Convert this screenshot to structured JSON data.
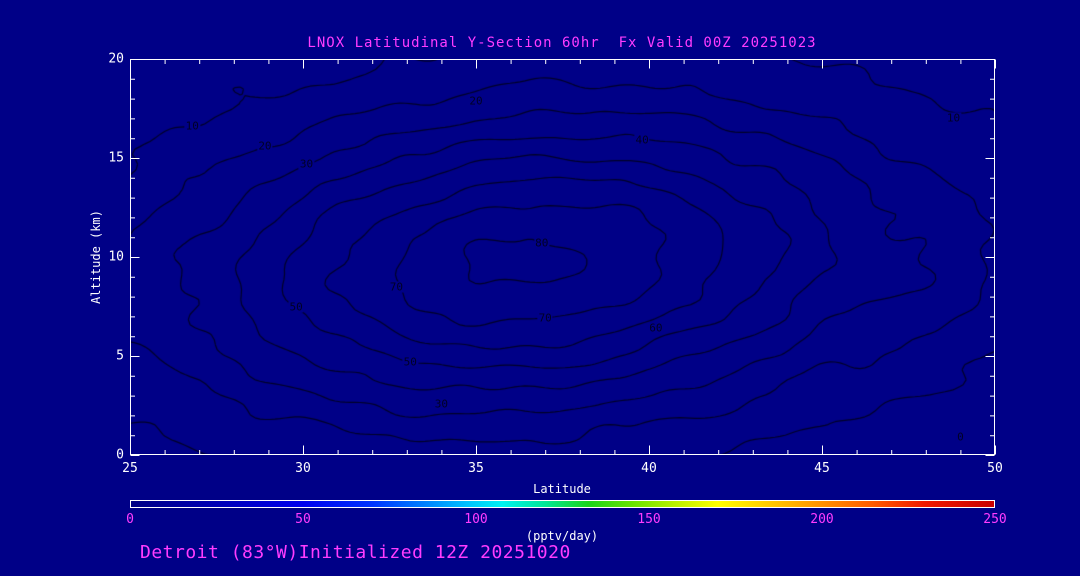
{
  "chart_data": {
    "type": "contour",
    "title": "LNOX Latitudinal Y-Section 60hr  Fx Valid 00Z 20251023",
    "xlabel": "Latitude",
    "ylabel": "Altitude (km)",
    "xlim": [
      25,
      50
    ],
    "ylim": [
      0,
      20
    ],
    "x_ticks": [
      25,
      30,
      35,
      40,
      45,
      50
    ],
    "y_ticks": [
      0,
      5,
      10,
      15,
      20
    ],
    "x_minor_step": 1,
    "y_minor_step": 1,
    "grid": false,
    "legend": "none",
    "contour_levels": [
      0,
      10,
      20,
      30,
      40,
      50,
      60,
      70,
      80
    ],
    "contour_labels": [
      {
        "level": 10,
        "lat": 26.8,
        "alt": 16.6
      },
      {
        "level": 20,
        "lat": 28.9,
        "alt": 15.6
      },
      {
        "level": 30,
        "lat": 30.1,
        "alt": 14.7
      },
      {
        "level": 20,
        "lat": 35.0,
        "alt": 17.9
      },
      {
        "level": 40,
        "lat": 39.8,
        "alt": 15.9
      },
      {
        "level": 80,
        "lat": 36.9,
        "alt": 10.7
      },
      {
        "level": 50,
        "lat": 29.8,
        "alt": 7.5
      },
      {
        "level": 70,
        "lat": 32.7,
        "alt": 8.5
      },
      {
        "level": 50,
        "lat": 33.1,
        "alt": 4.7
      },
      {
        "level": 30,
        "lat": 34.0,
        "alt": 2.6
      },
      {
        "level": 60,
        "lat": 40.2,
        "alt": 6.4
      },
      {
        "level": 70,
        "lat": 37.0,
        "alt": 6.9
      },
      {
        "level": 0,
        "lat": 49.0,
        "alt": 0.9
      },
      {
        "level": 10,
        "lat": 48.8,
        "alt": 17.0
      }
    ],
    "colorbar": {
      "min": 0,
      "max": 250,
      "ticks": [
        0,
        50,
        100,
        150,
        200,
        250
      ],
      "units_label": "(pptv/day)",
      "gradient": [
        {
          "color": "#000084",
          "pos": 0
        },
        {
          "color": "#0000b6",
          "pos": 10
        },
        {
          "color": "#0000ee",
          "pos": 20
        },
        {
          "color": "#0033ff",
          "pos": 28
        },
        {
          "color": "#0080ff",
          "pos": 34
        },
        {
          "color": "#00c3ff",
          "pos": 39
        },
        {
          "color": "#00f2f2",
          "pos": 43
        },
        {
          "color": "#00e896",
          "pos": 48
        },
        {
          "color": "#19d419",
          "pos": 53
        },
        {
          "color": "#66e400",
          "pos": 58
        },
        {
          "color": "#b8f000",
          "pos": 63
        },
        {
          "color": "#ffff00",
          "pos": 68
        },
        {
          "color": "#ffc800",
          "pos": 74
        },
        {
          "color": "#ff9100",
          "pos": 80
        },
        {
          "color": "#ff5a00",
          "pos": 86
        },
        {
          "color": "#f01800",
          "pos": 92
        },
        {
          "color": "#c80000",
          "pos": 100
        }
      ]
    },
    "annotations": {
      "left": "Detroit (83°W)",
      "right": "Initialized 12Z 20251020"
    },
    "colors": {
      "background": "#000087",
      "contour_line": "#000026",
      "axis": "#ffffff",
      "title_text": "#ff3cff",
      "tick_text": "#ffffff",
      "colorbar_tick_text": "#ff3cff"
    }
  }
}
